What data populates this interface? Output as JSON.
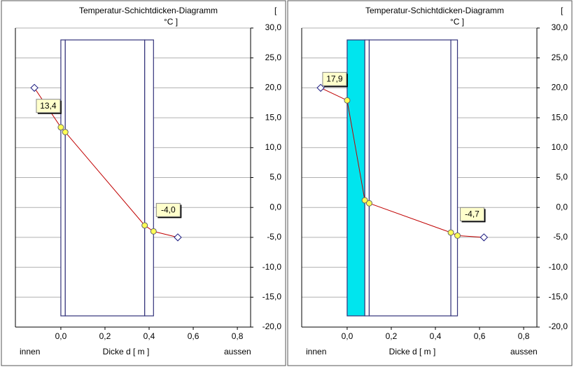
{
  "chart_data": [
    {
      "type": "line",
      "title": "Temperatur-Schichtdicken-Diagramm",
      "y_label_lines": [
        "[",
        "°C ]"
      ],
      "x_label": "Dicke d [ m ]",
      "inner_label": "innen",
      "outer_label": "aussen",
      "xlim": [
        -0.206,
        0.86
      ],
      "ylim": [
        -20,
        30
      ],
      "xticks": [
        {
          "value": 0,
          "label": "0,0"
        },
        {
          "value": 0.2,
          "label": "0,2"
        },
        {
          "value": 0.4,
          "label": "0,4"
        },
        {
          "value": 0.6,
          "label": "0,6"
        },
        {
          "value": 0.8,
          "label": "0,8"
        }
      ],
      "yticks": [
        {
          "value": 30,
          "label": "30,0"
        },
        {
          "value": 25,
          "label": "25,0"
        },
        {
          "value": 20,
          "label": "20,0"
        },
        {
          "value": 15,
          "label": "15,0"
        },
        {
          "value": 10,
          "label": "10,0"
        },
        {
          "value": 5,
          "label": "5,0"
        },
        {
          "value": 0,
          "label": "0,0"
        },
        {
          "value": -5,
          "label": "-5,0"
        },
        {
          "value": -10,
          "label": "-10,0"
        },
        {
          "value": -15,
          "label": "-15,0"
        },
        {
          "value": -20,
          "label": "-20,0"
        }
      ],
      "grid": true,
      "color": "#c00000",
      "layers": [
        {
          "x": [
            0,
            0.02
          ],
          "color": "#ffffff"
        },
        {
          "x": [
            0.02,
            0.38
          ],
          "color": "#ffffff"
        },
        {
          "x": [
            0.38,
            0.42
          ],
          "color": "#ffffff"
        }
      ],
      "x": [
        -0.12,
        0,
        0.02,
        0.38,
        0.42,
        0.53
      ],
      "values": [
        20,
        13.4,
        12.6,
        -3,
        -4,
        -5
      ],
      "value_labels": [
        null,
        "13,4",
        null,
        null,
        "-4,0",
        null
      ],
      "markers": [
        "diamond",
        "circle",
        "circle",
        "circle",
        "circle",
        "diamond"
      ]
    },
    {
      "type": "line",
      "title": "Temperatur-Schichtdicken-Diagramm",
      "y_label_lines": [
        "[",
        "°C ]"
      ],
      "x_label": "Dicke d [ m ]",
      "inner_label": "innen",
      "outer_label": "aussen",
      "xlim": [
        -0.206,
        0.86
      ],
      "ylim": [
        -20,
        30
      ],
      "xticks": [
        {
          "value": 0,
          "label": "0,0"
        },
        {
          "value": 0.2,
          "label": "0,2"
        },
        {
          "value": 0.4,
          "label": "0,4"
        },
        {
          "value": 0.6,
          "label": "0,6"
        },
        {
          "value": 0.8,
          "label": "0,8"
        }
      ],
      "yticks": [
        {
          "value": 30,
          "label": "30,0"
        },
        {
          "value": 25,
          "label": "25,0"
        },
        {
          "value": 20,
          "label": "20,0"
        },
        {
          "value": 15,
          "label": "15,0"
        },
        {
          "value": 10,
          "label": "10,0"
        },
        {
          "value": 5,
          "label": "5,0"
        },
        {
          "value": 0,
          "label": "0,0"
        },
        {
          "value": -5,
          "label": "-5,0"
        },
        {
          "value": -10,
          "label": "-10,0"
        },
        {
          "value": -15,
          "label": "-15,0"
        },
        {
          "value": -20,
          "label": "-20,0"
        }
      ],
      "grid": true,
      "color": "#c00000",
      "layers": [
        {
          "x": [
            0,
            0.08
          ],
          "color": "#00e5ee"
        },
        {
          "x": [
            0.08,
            0.1
          ],
          "color": "#ffffff"
        },
        {
          "x": [
            0.1,
            0.47
          ],
          "color": "#ffffff"
        },
        {
          "x": [
            0.47,
            0.5
          ],
          "color": "#ffffff"
        }
      ],
      "x": [
        -0.12,
        0,
        0.08,
        0.1,
        0.47,
        0.5,
        0.62
      ],
      "values": [
        20,
        17.9,
        1.2,
        0.7,
        -4.2,
        -4.7,
        -5
      ],
      "value_labels": [
        null,
        "17,9",
        null,
        null,
        null,
        "-4,7",
        null
      ],
      "markers": [
        "diamond",
        "circle",
        "circle",
        "circle",
        "circle",
        "circle",
        "diamond"
      ]
    }
  ]
}
